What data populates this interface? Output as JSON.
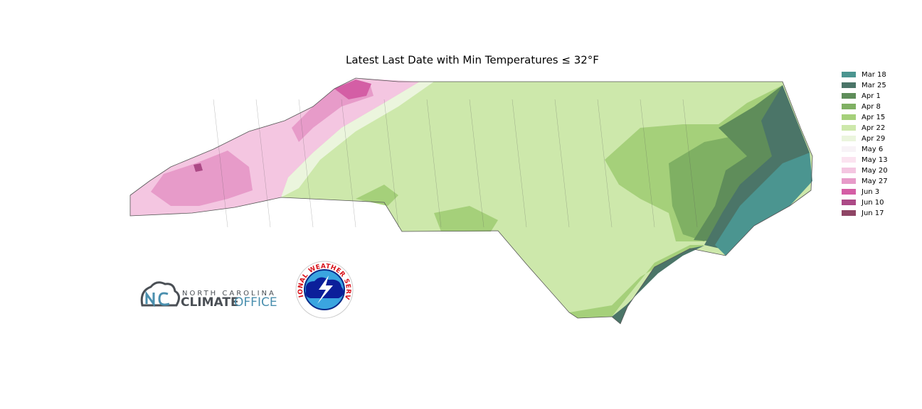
{
  "title": "Latest Last Date with Min Temperatures ≤ 32°F",
  "legend": [
    {
      "label": "Mar 18",
      "color": "#4b9590"
    },
    {
      "label": "Mar 25",
      "color": "#4b7568"
    },
    {
      "label": "Apr 1",
      "color": "#5f8d5a"
    },
    {
      "label": "Apr 8",
      "color": "#7fb063"
    },
    {
      "label": "Apr 15",
      "color": "#a5d07a"
    },
    {
      "label": "Apr 22",
      "color": "#cde8ab"
    },
    {
      "label": "Apr 29",
      "color": "#ebf5dd"
    },
    {
      "label": "May 6",
      "color": "#f8f3f7"
    },
    {
      "label": "May 13",
      "color": "#fbe3f0"
    },
    {
      "label": "May 20",
      "color": "#f4c6e1"
    },
    {
      "label": "May 27",
      "color": "#e79bc9"
    },
    {
      "label": "Jun 3",
      "color": "#d45ea5"
    },
    {
      "label": "Jun 10",
      "color": "#ac4a86"
    },
    {
      "label": "Jun 17",
      "color": "#8e4565"
    }
  ],
  "logos": {
    "climate_office": {
      "state": "NORTH CAROLINA",
      "word1": "CLIMATE",
      "word2": "OFFICE"
    },
    "nws": "NATIONAL WEATHER SERVICE"
  }
}
